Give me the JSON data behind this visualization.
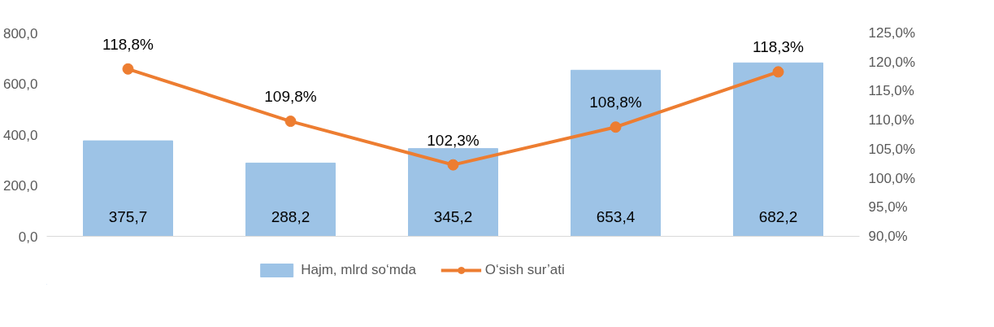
{
  "chart_data": {
    "type": "bar",
    "categories": [
      null,
      null,
      null,
      null,
      null
    ],
    "series": [
      {
        "name": "Hajm, mlrd so‘mda",
        "color": "#9dc3e6",
        "values": [
          375.7,
          288.2,
          345.2,
          653.4,
          682.2
        ],
        "value_labels": [
          "375,7",
          "288,2",
          "345,2",
          "653,4",
          "682,2"
        ]
      },
      {
        "name": "O‘sish sur’ati",
        "type": "line",
        "axis": "y2",
        "color": "#ed7d31",
        "values": [
          118.8,
          109.8,
          102.3,
          108.8,
          118.3
        ],
        "value_labels": [
          "118,8%",
          "109,8%",
          "102,3%",
          "108,8%",
          "118,3%"
        ]
      }
    ],
    "ylim": [
      0,
      800
    ],
    "yticks": [
      {
        "value": 0,
        "label": "0,0"
      },
      {
        "value": 200,
        "label": "200,0"
      },
      {
        "value": 400,
        "label": "400,0"
      },
      {
        "value": 600,
        "label": "600,0"
      },
      {
        "value": 800,
        "label": "800,0"
      }
    ],
    "y2lim": [
      90,
      125
    ],
    "y2ticks": [
      {
        "value": 90,
        "label": "90,0%"
      },
      {
        "value": 95,
        "label": "95,0%"
      },
      {
        "value": 100,
        "label": "100,0%"
      },
      {
        "value": 105,
        "label": "105,0%"
      },
      {
        "value": 110,
        "label": "110,0%"
      },
      {
        "value": 115,
        "label": "115,0%"
      },
      {
        "value": 120,
        "label": "120,0%"
      },
      {
        "value": 125,
        "label": "125,0%"
      }
    ],
    "grid": false,
    "legend": "bottom",
    "marker": "circle",
    "line_style": "solid",
    "tick_labels": "y"
  }
}
